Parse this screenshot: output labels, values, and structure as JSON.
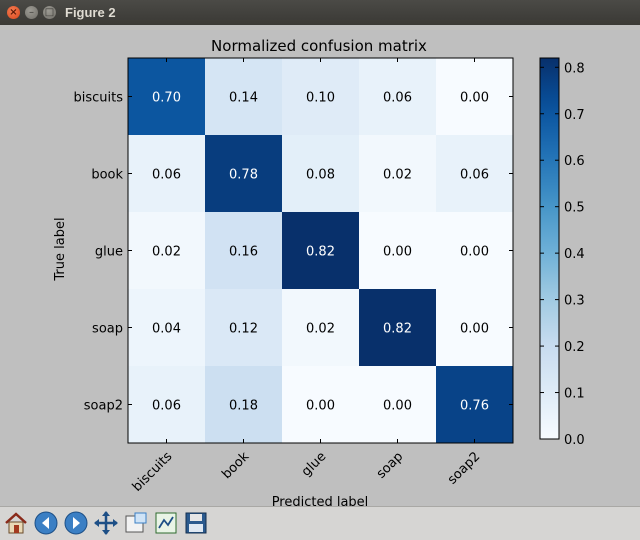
{
  "window": {
    "title": "Figure 2"
  },
  "chart_data": {
    "type": "heatmap",
    "title": "Normalized confusion matrix",
    "xlabel": "Predicted label",
    "ylabel": "True label",
    "x_categories": [
      "biscuits",
      "book",
      "glue",
      "soap",
      "soap2"
    ],
    "y_categories": [
      "biscuits",
      "book",
      "glue",
      "soap",
      "soap2"
    ],
    "values": [
      [
        0.7,
        0.14,
        0.1,
        0.06,
        0.0
      ],
      [
        0.06,
        0.78,
        0.08,
        0.02,
        0.06
      ],
      [
        0.02,
        0.16,
        0.82,
        0.0,
        0.0
      ],
      [
        0.04,
        0.12,
        0.02,
        0.82,
        0.0
      ],
      [
        0.06,
        0.18,
        0.0,
        0.0,
        0.76
      ]
    ],
    "value_labels": [
      [
        "0.70",
        "0.14",
        "0.10",
        "0.06",
        "0.00"
      ],
      [
        "0.06",
        "0.78",
        "0.08",
        "0.02",
        "0.06"
      ],
      [
        "0.02",
        "0.16",
        "0.82",
        "0.00",
        "0.00"
      ],
      [
        "0.04",
        "0.12",
        "0.02",
        "0.82",
        "0.00"
      ],
      [
        "0.06",
        "0.18",
        "0.00",
        "0.00",
        "0.76"
      ]
    ],
    "colormap": "Blues",
    "vmin": 0.0,
    "vmax": 0.82,
    "colorbar_ticks": [
      "0.0",
      "0.1",
      "0.2",
      "0.3",
      "0.4",
      "0.5",
      "0.6",
      "0.7",
      "0.8"
    ]
  },
  "toolbar": {
    "buttons": [
      {
        "name": "home-button",
        "icon": "home-icon"
      },
      {
        "name": "back-button",
        "icon": "arrow-left-icon"
      },
      {
        "name": "forward-button",
        "icon": "arrow-right-icon"
      },
      {
        "name": "pan-button",
        "icon": "move-icon"
      },
      {
        "name": "zoom-button",
        "icon": "zoom-rect-icon"
      },
      {
        "name": "subplots-button",
        "icon": "subplots-icon"
      },
      {
        "name": "save-button",
        "icon": "floppy-icon"
      }
    ]
  }
}
